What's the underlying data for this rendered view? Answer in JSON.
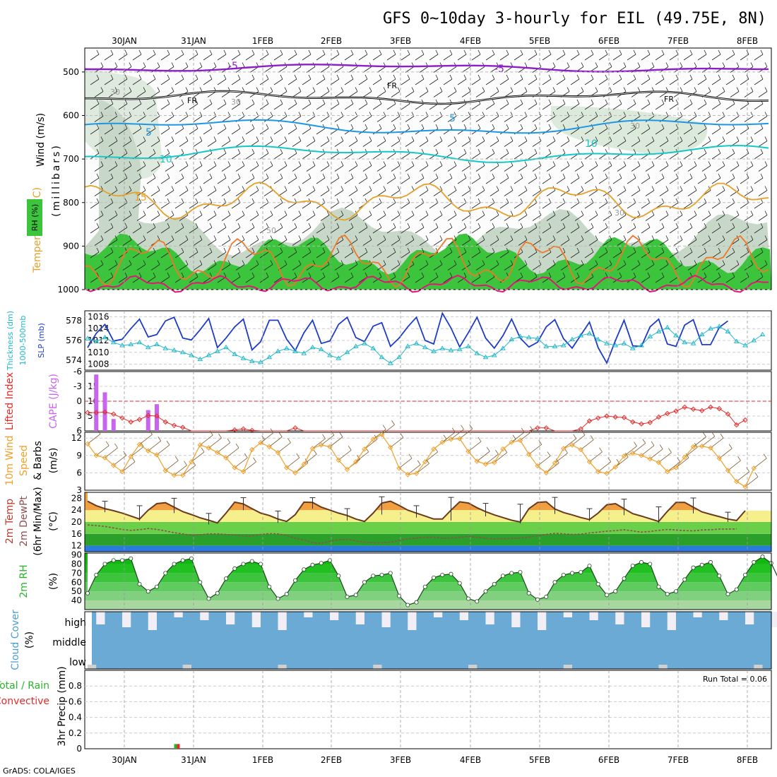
{
  "title": "GFS 0~10day 3-hourly for EIL (49.75E, 8N)",
  "credit": "GrADS: COLA/IGES",
  "date_labels": [
    "30JAN",
    "31JAN",
    "1FEB",
    "2FEB",
    "3FEB",
    "4FEB",
    "5FEB",
    "6FEB",
    "7FEB",
    "8FEB"
  ],
  "colors": {
    "rh_green": "#3cc43c",
    "frz": "#000000",
    "t_m5": "#8e1ec8",
    "t_5": "#1e96e6",
    "t_10": "#14c8c8",
    "t_15": "#e6a028",
    "slp": "#1e3cc8",
    "thk": "#22b8c8",
    "cape": "#c864f0",
    "li": "#e62828",
    "wind10": "#f0a028",
    "cloud": "#6aaad4",
    "cloud_white": "#f2eef6",
    "temp_orange": "#f0a040",
    "temp_yellow": "#f6f08c",
    "precip_green": "#2ab42a",
    "precip_red": "#e62828"
  },
  "panels": {
    "upper": {
      "ylabel_wind": "Wind (m/s)",
      "ylabel_temp": "Temperature (°C)",
      "ylabel_rh": "RH (%)",
      "ylabel_mb": "(millibars)",
      "rh_legend": "RH (%)",
      "y_ticks": [
        "500",
        "600",
        "700",
        "800",
        "900",
        "1000"
      ],
      "contour_labels": {
        "t1": "-5",
        "t2": "-5",
        "fr1": "FR",
        "fr2": "FR",
        "fr3": "FR",
        "c5a": "5",
        "c5b": "5",
        "c10a": "10",
        "c10b": "10",
        "c15": "15",
        "r30a": "30",
        "r30b": "30",
        "r30c": "30",
        "r30d": "30",
        "r50": "50"
      }
    },
    "thick": {
      "ylabel_a": "Thickness (dm)",
      "ylabel_b": "1000-500mb",
      "ylabel_c": "SLP (mb)",
      "y_left": [
        "578",
        "576",
        "574"
      ],
      "y_right": [
        "1016",
        "1014",
        "1012",
        "1010",
        "1008"
      ]
    },
    "cape": {
      "ylabel_a": "Lifted Index",
      "ylabel_b": "CAPE (J/kg)",
      "y_left": [
        "-6",
        "-3",
        "0",
        "3",
        "6"
      ],
      "y_right": [
        "15",
        "10",
        "5"
      ]
    },
    "wind": {
      "ylabel_a": "10m Wind",
      "ylabel_b": "Speed",
      "ylabel_c": "& Barbs",
      "ylabel_d": "(m/s)",
      "y_ticks": [
        "12",
        "9",
        "6",
        "3"
      ]
    },
    "temp": {
      "ylabel_a": "2m Temp",
      "ylabel_b": "2m DewPt",
      "ylabel_c": "(6hr Min/Max)",
      "ylabel_d": "(°C)",
      "y_ticks": [
        "28",
        "24",
        "20",
        "16",
        "12"
      ]
    },
    "rh": {
      "ylabel_a": "2m RH",
      "ylabel_b": "(%)",
      "y_ticks": [
        "90",
        "80",
        "70",
        "60",
        "50",
        "40"
      ]
    },
    "cloud": {
      "ylabel_a": "Cloud Cover",
      "ylabel_b": "(%)",
      "levels": [
        "high",
        "middle",
        "low"
      ]
    },
    "precip": {
      "ylabel_a": "Total / Rain",
      "ylabel_b": "Convective",
      "ylabel_c": "3hr Precip (mm)",
      "y_ticks": [
        "0.8",
        "0.6",
        "0.4",
        "0.2",
        "0"
      ],
      "run_total": "Run Total = 0.06"
    }
  },
  "chart_data": [
    {
      "type": "line",
      "name": "1000-500mb thickness",
      "units": "dm",
      "ylim": [
        573,
        579
      ],
      "values": [
        576.2,
        575.9,
        576.3,
        575.8,
        575.5,
        575.6,
        575.8,
        575.3,
        575.6,
        575.2,
        575,
        574.8,
        574.5,
        574.1,
        574.5,
        574.9,
        575.3,
        574.6,
        574.2,
        573.9,
        573.8,
        574.3,
        574.9,
        575.2,
        574.9,
        574.7,
        575.3,
        575.1,
        574.5,
        574.2,
        574.8,
        575.4,
        575.7,
        575.2,
        574.3,
        573.7,
        574.3,
        575.4,
        575.7,
        575.3,
        574.9,
        575.2,
        575,
        575.1,
        575.4,
        574.7,
        574.3,
        574.5,
        575.2,
        576.1,
        576.4,
        576.3,
        576.2,
        575.4,
        575.4,
        575.5,
        576.1,
        576.5,
        576.7,
        576.1,
        575.7,
        575.5,
        575.7,
        575.2,
        575.5,
        576.4,
        576.9,
        577.3,
        576.5,
        575.8,
        575.7,
        576.6,
        577.2,
        577.4,
        576.9,
        575.9,
        575.5,
        576.0,
        576.6
      ]
    },
    {
      "type": "line",
      "name": "SLP",
      "units": "mb",
      "ylim": [
        1007,
        1017
      ],
      "values": [
        1010.8,
        1013.2,
        1014.7,
        1011.9,
        1012.2,
        1014.0,
        1015.6,
        1012.6,
        1013.0,
        1015.3,
        1015.9,
        1012.4,
        1012.1,
        1013.8,
        1015.7,
        1010.8,
        1012.4,
        1014.3,
        1015.6,
        1010.4,
        1011.8,
        1015.4,
        1015.4,
        1012.2,
        1010.3,
        1013.3,
        1015.4,
        1011.5,
        1011.9,
        1014.7,
        1015.9,
        1012.5,
        1011.8,
        1014.4,
        1015.0,
        1011.0,
        1012.4,
        1014.3,
        1015.9,
        1012.0,
        1011.4,
        1016.6,
        1014.1,
        1010.9,
        1013.3,
        1015.9,
        1012.4,
        1010.7,
        1012.8,
        1015.6,
        1012.4,
        1010.9,
        1011.7,
        1014.3,
        1015.5,
        1012.3,
        1010.7,
        1012.9,
        1015.1,
        1010.8,
        1008.2,
        1012.0,
        1015.4,
        1011.1,
        1011.0,
        1014.3,
        1015.6,
        1011.4,
        1011.0,
        1014.6,
        1015.5,
        1011.3,
        1011.3,
        1014.2,
        1015.3
      ]
    },
    {
      "type": "bar",
      "name": "CAPE",
      "units": "J/kg",
      "ylim": [
        0,
        20
      ],
      "values": [
        0,
        19,
        13,
        4,
        0,
        0,
        0,
        7,
        9,
        0,
        0,
        0,
        0,
        0,
        0,
        0,
        0,
        0,
        0,
        0,
        0,
        0,
        0,
        0,
        0,
        0,
        0,
        0,
        0,
        0,
        0,
        0,
        0,
        0,
        0,
        0,
        0,
        0,
        0,
        0,
        0,
        0,
        0,
        0,
        0,
        0,
        0,
        0,
        0,
        0,
        0,
        0,
        0,
        0,
        0,
        0,
        0,
        0,
        0,
        0,
        0,
        0,
        0,
        0,
        0,
        0,
        0,
        0,
        0,
        0,
        0,
        0,
        0,
        0,
        0,
        0,
        0,
        0,
        0,
        0
      ]
    },
    {
      "type": "line",
      "name": "Lifted Index",
      "units": "C",
      "ylim": [
        -6,
        6
      ],
      "values": [
        2.3,
        2.3,
        2.2,
        2.6,
        3.4,
        4.2,
        3.7,
        2.9,
        3.0,
        4.2,
        4.9,
        5.3,
        6,
        6,
        6,
        6,
        6,
        5.8,
        5.6,
        5.9,
        6,
        6,
        6,
        6,
        5.4,
        6,
        6,
        6,
        6,
        6,
        6,
        6,
        6,
        6,
        6,
        6,
        6,
        6,
        6,
        6,
        6,
        6,
        6,
        6,
        6,
        6,
        6,
        6,
        6,
        6,
        6,
        6,
        5.4,
        5.4,
        6,
        6,
        6,
        5.6,
        4.0,
        3.4,
        3.0,
        3.2,
        3.3,
        4.2,
        4.6,
        4.3,
        3.2,
        2.5,
        2.0,
        1.2,
        1.6,
        1.9,
        1.2,
        1.5,
        2.6,
        4.8,
        3.8
      ]
    },
    {
      "type": "line",
      "name": "10m Wind Speed",
      "units": "m/s",
      "ylim": [
        3,
        13
      ],
      "values": [
        11,
        9,
        8.6,
        7.3,
        6.2,
        8.8,
        10.9,
        9.8,
        9.1,
        6.4,
        5.6,
        5.6,
        7.9,
        10.8,
        10.3,
        9.5,
        8.6,
        6.9,
        6.2,
        10,
        11.2,
        10.5,
        9.5,
        6.9,
        6.0,
        7.5,
        10.2,
        10.8,
        10.5,
        8.2,
        6.6,
        7.9,
        10.1,
        11.8,
        12.6,
        10.4,
        6.8,
        5.7,
        5.9,
        7.9,
        10.1,
        11.3,
        11.8,
        11.9,
        9.7,
        8.0,
        7.5,
        7.8,
        10.1,
        11.3,
        11.6,
        9.2,
        7.2,
        6.0,
        7.7,
        10.2,
        10.8,
        10.0,
        7.9,
        6.2,
        5.9,
        7.0,
        8.9,
        9.4,
        9.0,
        8.4,
        7.8,
        6.2,
        6.9,
        8.7,
        10.5,
        10.6,
        10.3,
        8.5,
        6.4,
        4.5,
        3.6,
        6.8
      ]
    },
    {
      "type": "area",
      "name": "2m Temp",
      "units": "C",
      "ylim": [
        10,
        30
      ],
      "values": [
        27,
        25.5,
        24.5,
        23.8,
        23,
        22,
        21,
        24,
        26.2,
        26.5,
        25,
        23.5,
        22.5,
        21.4,
        20.6,
        19.7,
        23,
        26.7,
        26.1,
        24.5,
        23,
        22.2,
        21,
        20.2,
        22.5,
        26.7,
        26.6,
        25,
        24,
        23,
        22.2,
        21,
        20.2,
        23,
        26.4,
        27,
        25.6,
        24,
        23,
        22,
        21,
        21,
        24,
        26.8,
        26.4,
        24.8,
        23.5,
        22.4,
        21.5,
        20.6,
        20,
        24.5,
        26.6,
        26.8,
        24.4,
        23.2,
        22.4,
        21.5,
        20.8,
        23,
        25.8,
        26.2,
        24.5,
        22.8,
        22,
        21.1,
        20.2,
        23.6,
        26.6,
        26.6,
        25,
        23.4,
        22.6,
        21.8,
        21,
        20.5,
        23.8
      ]
    },
    {
      "type": "line",
      "name": "2m DewPt",
      "units": "C",
      "ylim": [
        10,
        30
      ],
      "values": [
        19,
        18.8,
        18.5,
        18,
        17.5,
        17.2,
        17.4,
        17.8,
        17.5,
        17,
        16.4,
        16,
        15.5,
        15.7,
        16,
        16,
        15.8,
        15.6,
        15.3,
        15.3,
        15.8,
        16.1,
        16,
        15.5,
        14.5,
        14,
        13,
        12.8,
        13.5,
        14,
        14.2,
        13.7,
        13.2,
        13,
        13,
        13.2,
        13.8,
        14.3,
        14.6,
        14.8,
        14.9,
        14.5,
        14.6,
        14.8,
        15.1,
        14.9,
        14.5,
        14.3,
        14.4,
        14.5,
        14.6,
        14.9,
        15.4,
        15.8,
        16.2,
        16,
        15.8,
        15.9,
        16.3,
        16.6,
        16.9,
        17.1,
        17.4,
        17.0,
        16.6,
        16.8,
        17.2,
        17.5,
        17.3,
        17.1,
        17.0,
        17.3,
        17.4,
        17.6,
        17.6,
        17.7
      ]
    },
    {
      "type": "area",
      "name": "2m RH",
      "units": "%",
      "ylim": [
        30,
        92
      ],
      "values": [
        48,
        68,
        80,
        84,
        84,
        86,
        58,
        50,
        55,
        70,
        80,
        84,
        86,
        60,
        42,
        48,
        64,
        75,
        80,
        83,
        80,
        55,
        42,
        47,
        62,
        74,
        79,
        81,
        84,
        67,
        44,
        46,
        60,
        67,
        68,
        70,
        45,
        35,
        38,
        55,
        65,
        68,
        69,
        59,
        42,
        39,
        50,
        58,
        67,
        70,
        71,
        48,
        41,
        44,
        60,
        68,
        70,
        71,
        78,
        58,
        46,
        50,
        64,
        78,
        82,
        80,
        55,
        47,
        50,
        63,
        76,
        79,
        82,
        67,
        47,
        52,
        68,
        82,
        88,
        81,
        61
      ]
    },
    {
      "type": "bar",
      "name": "3hr Precip",
      "units": "mm",
      "ylim": [
        0,
        1
      ],
      "values": [
        0.06
      ]
    }
  ]
}
